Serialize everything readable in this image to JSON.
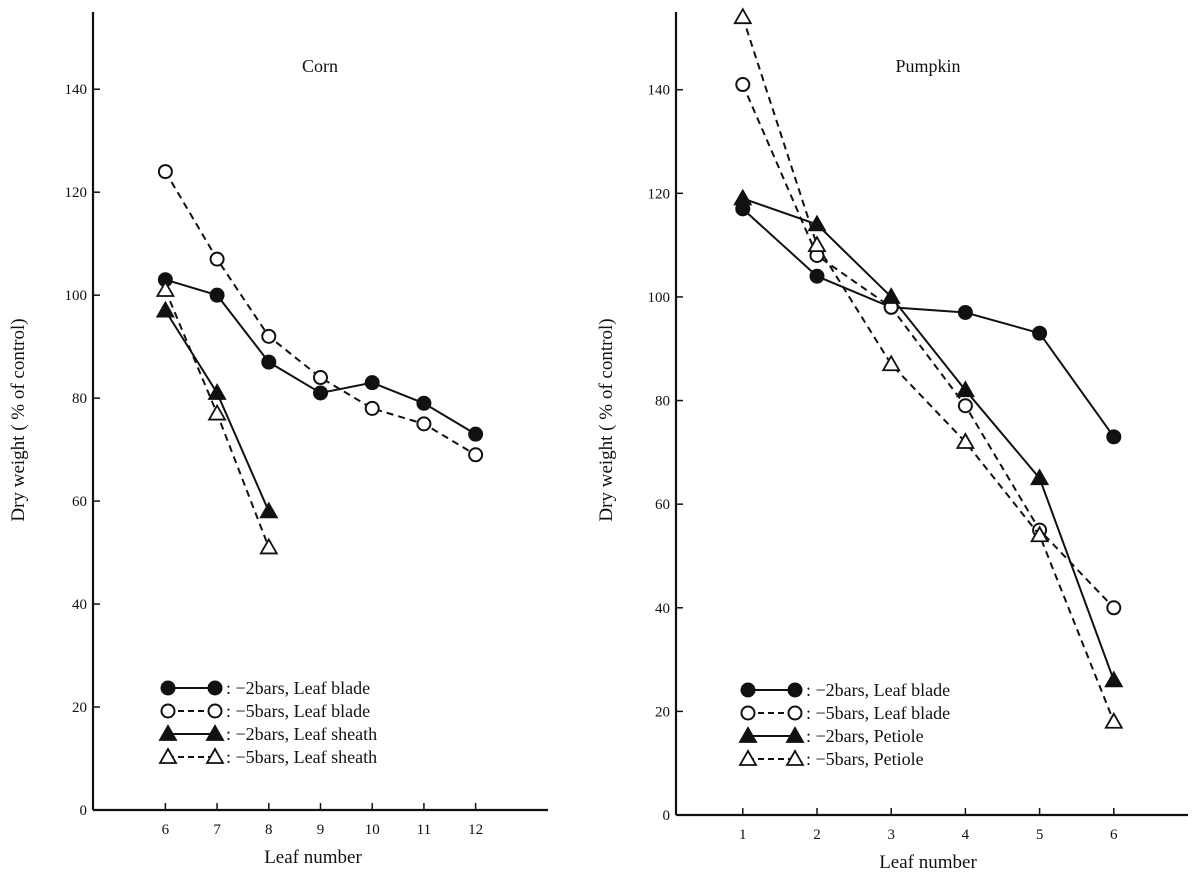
{
  "chart_data": [
    {
      "type": "line",
      "title": "Corn",
      "xlabel": "Leaf number",
      "ylabel": "Dry weight ( % of control)",
      "x_ticks": [
        6,
        7,
        8,
        9,
        10,
        11,
        12
      ],
      "y_ticks": [
        0,
        20,
        40,
        60,
        80,
        100,
        120,
        140
      ],
      "xlim": [
        4.6,
        13.4
      ],
      "ylim": [
        0,
        155
      ],
      "grid": false,
      "legend_position": "bottom-center",
      "series": [
        {
          "name": ": −2bars, Leaf blade",
          "marker": "filled-circle",
          "line": "solid",
          "x": [
            6,
            7,
            8,
            9,
            10,
            11,
            12
          ],
          "y": [
            103,
            100,
            87,
            81,
            83,
            79,
            73
          ]
        },
        {
          "name": ": −5bars, Leaf blade",
          "marker": "open-circle",
          "line": "dashed",
          "x": [
            6,
            7,
            8,
            9,
            10,
            11,
            12
          ],
          "y": [
            124,
            107,
            92,
            84,
            78,
            75,
            69
          ]
        },
        {
          "name": ": −2bars, Leaf sheath",
          "marker": "filled-triangle",
          "line": "solid",
          "x": [
            6,
            7,
            8
          ],
          "y": [
            97,
            81,
            58
          ]
        },
        {
          "name": ": −5bars, Leaf sheath",
          "marker": "open-triangle",
          "line": "dashed",
          "x": [
            6,
            7,
            8
          ],
          "y": [
            101,
            77,
            51
          ]
        }
      ]
    },
    {
      "type": "line",
      "title": "Pumpkin",
      "xlabel": "Leaf number",
      "ylabel": "Dry weight ( % of control)",
      "x_ticks": [
        1,
        2,
        3,
        4,
        5,
        6
      ],
      "y_ticks": [
        0,
        20,
        40,
        60,
        80,
        100,
        120,
        140
      ],
      "xlim": [
        0.1,
        7.0
      ],
      "ylim": [
        0,
        155
      ],
      "grid": false,
      "legend_position": "bottom-left",
      "series": [
        {
          "name": ": −2bars, Leaf blade",
          "marker": "filled-circle",
          "line": "solid",
          "x": [
            1,
            2,
            3,
            4,
            5,
            6
          ],
          "y": [
            117,
            104,
            98,
            97,
            93,
            73
          ]
        },
        {
          "name": ": −5bars, Leaf blade",
          "marker": "open-circle",
          "line": "dashed",
          "x": [
            1,
            2,
            3,
            4,
            5,
            6
          ],
          "y": [
            141,
            108,
            98,
            79,
            55,
            40
          ]
        },
        {
          "name": ": −2bars, Petiole",
          "marker": "filled-triangle",
          "line": "solid",
          "x": [
            1,
            2,
            3,
            4,
            5,
            6
          ],
          "y": [
            119,
            114,
            100,
            82,
            65,
            26
          ]
        },
        {
          "name": ": −5bars, Petiole",
          "marker": "open-triangle",
          "line": "dashed",
          "x": [
            1,
            2,
            3,
            4,
            5,
            6
          ],
          "y": [
            154,
            110,
            87,
            72,
            54,
            18
          ]
        }
      ]
    }
  ]
}
